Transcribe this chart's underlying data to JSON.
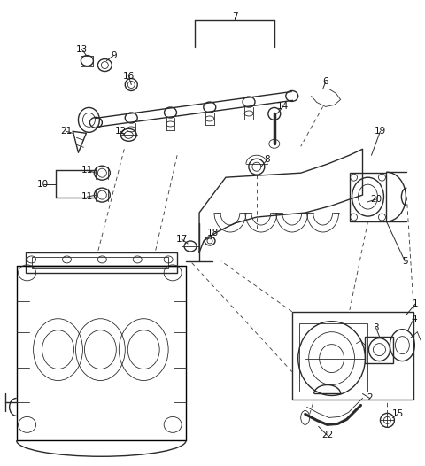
{
  "bg_color": "#ffffff",
  "line_color": "#2a2a2a",
  "label_color": "#111111",
  "fig_width": 4.8,
  "fig_height": 5.26,
  "dpi": 100
}
